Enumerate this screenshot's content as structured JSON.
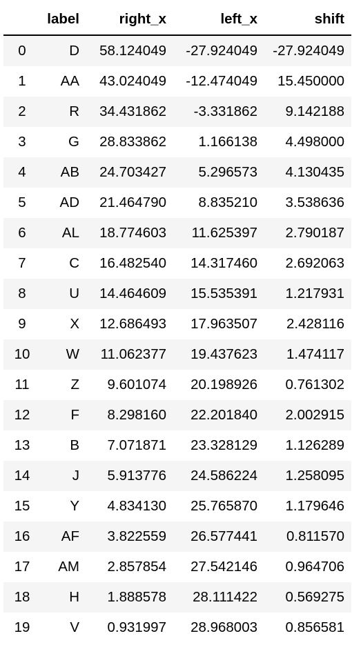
{
  "table": {
    "columns": [
      "",
      "label",
      "right_x",
      "left_x",
      "shift"
    ],
    "rows": [
      [
        "0",
        "D",
        "58.124049",
        "-27.924049",
        "-27.924049"
      ],
      [
        "1",
        "AA",
        "43.024049",
        "-12.474049",
        "15.450000"
      ],
      [
        "2",
        "R",
        "34.431862",
        "-3.331862",
        "9.142188"
      ],
      [
        "3",
        "G",
        "28.833862",
        "1.166138",
        "4.498000"
      ],
      [
        "4",
        "AB",
        "24.703427",
        "5.296573",
        "4.130435"
      ],
      [
        "5",
        "AD",
        "21.464790",
        "8.835210",
        "3.538636"
      ],
      [
        "6",
        "AL",
        "18.774603",
        "11.625397",
        "2.790187"
      ],
      [
        "7",
        "C",
        "16.482540",
        "14.317460",
        "2.692063"
      ],
      [
        "8",
        "U",
        "14.464609",
        "15.535391",
        "1.217931"
      ],
      [
        "9",
        "X",
        "12.686493",
        "17.963507",
        "2.428116"
      ],
      [
        "10",
        "W",
        "11.062377",
        "19.437623",
        "1.474117"
      ],
      [
        "11",
        "Z",
        "9.601074",
        "20.198926",
        "0.761302"
      ],
      [
        "12",
        "F",
        "8.298160",
        "22.201840",
        "2.002915"
      ],
      [
        "13",
        "B",
        "7.071871",
        "23.328129",
        "1.126289"
      ],
      [
        "14",
        "J",
        "5.913776",
        "24.586224",
        "1.258095"
      ],
      [
        "15",
        "Y",
        "4.834130",
        "25.765870",
        "1.179646"
      ],
      [
        "16",
        "AF",
        "3.822559",
        "26.577441",
        "0.811570"
      ],
      [
        "17",
        "AM",
        "2.857854",
        "27.542146",
        "0.964706"
      ],
      [
        "18",
        "H",
        "1.888578",
        "28.111422",
        "0.569275"
      ],
      [
        "19",
        "V",
        "0.931997",
        "28.968003",
        "0.856581"
      ]
    ]
  }
}
